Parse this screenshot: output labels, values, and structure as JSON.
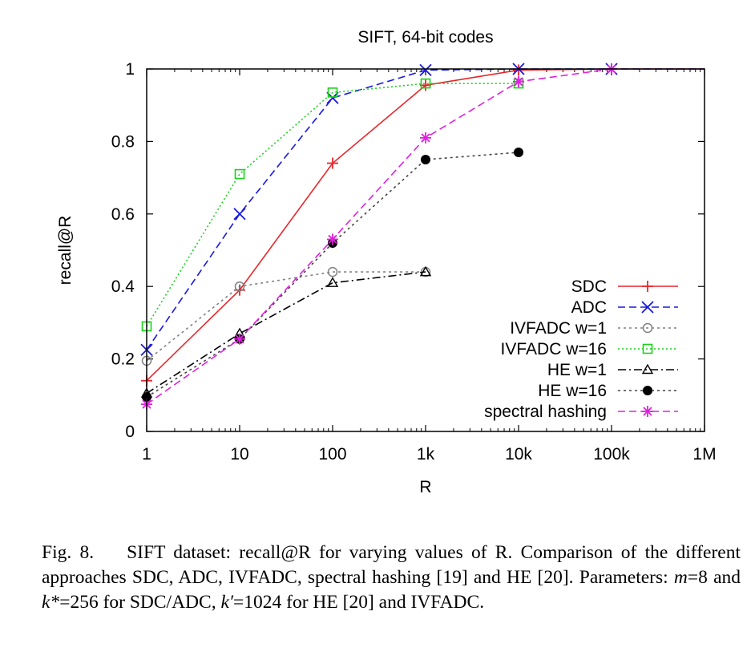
{
  "chart_data": {
    "type": "line",
    "title": "SIFT, 64-bit codes",
    "xlabel": "R",
    "ylabel": "recall@R",
    "x_scale": "log",
    "xlim": [
      1,
      1000000
    ],
    "ylim": [
      0,
      1
    ],
    "x_ticks": [
      1,
      10,
      100,
      1000,
      10000,
      100000,
      1000000
    ],
    "x_tick_labels": [
      "1",
      "10",
      "100",
      "1k",
      "10k",
      "100k",
      "1M"
    ],
    "y_ticks": [
      0,
      0.2,
      0.4,
      0.6,
      0.8,
      1
    ],
    "y_tick_labels": [
      "0",
      "0.2",
      "0.4",
      "0.6",
      "0.8",
      "1"
    ],
    "legend_position": "bottom-right",
    "grid": false,
    "series": [
      {
        "name": "SDC",
        "color": "#e8262b",
        "dash": "solid",
        "marker": "plus",
        "x": [
          1,
          10,
          100,
          1000,
          10000,
          100000,
          1000000
        ],
        "y": [
          0.14,
          0.39,
          0.74,
          0.955,
          0.997,
          1.0,
          1.0
        ]
      },
      {
        "name": "ADC",
        "color": "#1818e0",
        "dash": "dashed",
        "marker": "cross",
        "x": [
          1,
          10,
          100,
          1000,
          10000,
          100000,
          1000000
        ],
        "y": [
          0.225,
          0.6,
          0.92,
          0.997,
          1.0,
          1.0,
          1.0
        ]
      },
      {
        "name": "IVFADC w=1",
        "color": "#808080",
        "dash": "dotted-short",
        "marker": "circle-open",
        "x": [
          1,
          10,
          100,
          1000
        ],
        "y": [
          0.195,
          0.4,
          0.44,
          0.44
        ]
      },
      {
        "name": "IVFADC w=16",
        "color": "#19d119",
        "dash": "dotted",
        "marker": "square-open",
        "x": [
          1,
          10,
          100,
          1000,
          10000
        ],
        "y": [
          0.29,
          0.71,
          0.935,
          0.96,
          0.96
        ]
      },
      {
        "name": "HE w=1",
        "color": "#000000",
        "dash": "dashdot",
        "marker": "triangle-open",
        "x": [
          1,
          10,
          100,
          1000
        ],
        "y": [
          0.105,
          0.27,
          0.41,
          0.44
        ]
      },
      {
        "name": "HE w=16",
        "color": "#444444",
        "dash": "dotted-short",
        "marker": "circle-filled",
        "x": [
          1,
          10,
          100,
          1000,
          10000
        ],
        "y": [
          0.095,
          0.255,
          0.52,
          0.75,
          0.77
        ]
      },
      {
        "name": "spectral hashing",
        "color": "#e020e0",
        "dash": "dashed",
        "marker": "star",
        "x": [
          1,
          10,
          100,
          1000,
          10000,
          100000
        ],
        "y": [
          0.075,
          0.255,
          0.53,
          0.81,
          0.965,
          1.0
        ]
      }
    ]
  },
  "caption": {
    "label": "Fig. 8.",
    "text_1": "SIFT dataset: recall@R for varying values of R. Comparison of the different approaches SDC, ADC, IVFADC, spectral hashing [19] and HE [20]. Parameters: ",
    "m_var": "m",
    "text_2": "=8 and ",
    "k_star_var": "k*",
    "text_3": "=256 for SDC/ADC, ",
    "k_prime_var": "k′",
    "text_4": "=1024 for HE [20] and IVFADC."
  }
}
